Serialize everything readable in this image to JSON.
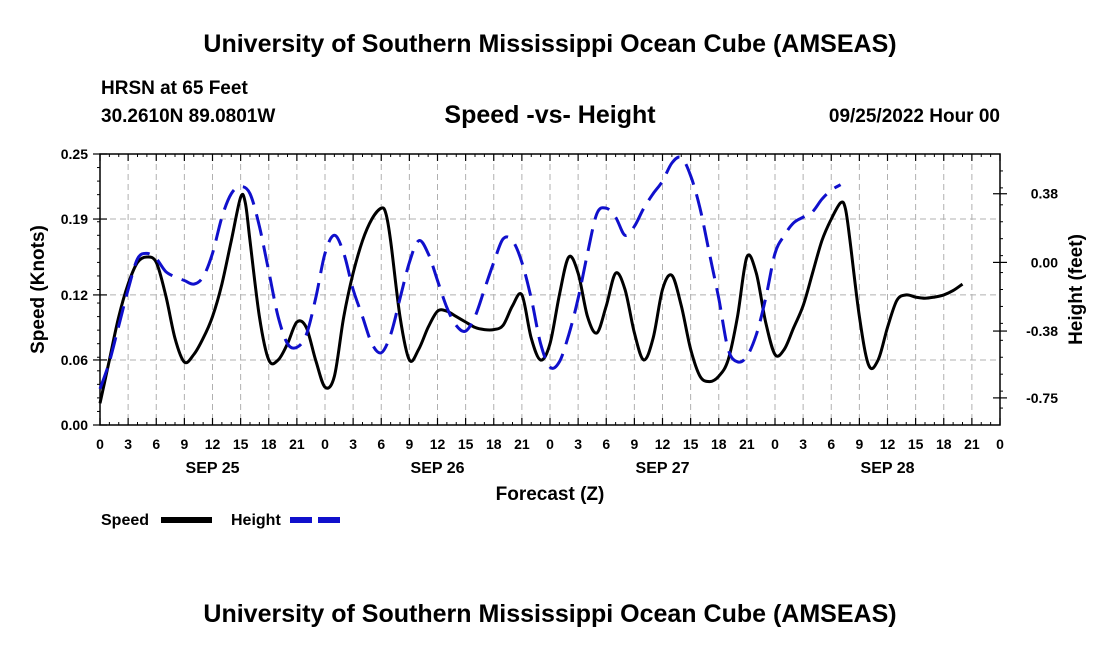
{
  "header": {
    "title": "University of Southern Mississippi Ocean Cube (AMSEAS)",
    "station": "HRSN at 65 Feet",
    "coords": "30.2610N  89.0801W",
    "subtitle": "Speed -vs- Height",
    "datetime": "09/25/2022 Hour 00"
  },
  "footer": {
    "title": "University of Southern Mississippi Ocean Cube (AMSEAS)"
  },
  "chart_data": {
    "type": "line",
    "title": "Speed -vs- Height",
    "xlabel": "Forecast (Z)",
    "ylabel": "Speed (Knots)",
    "y2label": "Height (feet)",
    "xlim": [
      0,
      96
    ],
    "ylim": [
      0,
      0.25
    ],
    "y2lim": [
      -0.9,
      0.6
    ],
    "grid": true,
    "x_ticks": [
      0,
      3,
      6,
      9,
      12,
      15,
      18,
      21,
      24,
      27,
      30,
      33,
      36,
      39,
      42,
      45,
      48,
      51,
      54,
      57,
      60,
      63,
      66,
      69,
      72,
      75,
      78,
      81,
      84,
      87,
      90,
      93,
      96
    ],
    "x_tick_labels": [
      "0",
      "3",
      "6",
      "9",
      "12",
      "15",
      "18",
      "21",
      "0",
      "3",
      "6",
      "9",
      "12",
      "15",
      "18",
      "21",
      "0",
      "3",
      "6",
      "9",
      "12",
      "15",
      "18",
      "21",
      "0",
      "3",
      "6",
      "9",
      "12",
      "15",
      "18",
      "21",
      "0"
    ],
    "date_labels": [
      {
        "x": 12,
        "label": "SEP 25"
      },
      {
        "x": 36,
        "label": "SEP 26"
      },
      {
        "x": 60,
        "label": "SEP 27"
      },
      {
        "x": 84,
        "label": "SEP 28"
      }
    ],
    "y_ticks": [
      0.0,
      0.06,
      0.12,
      0.19,
      0.25
    ],
    "y_tick_labels": [
      "0.00",
      "0.06",
      "0.12",
      "0.19",
      "0.25"
    ],
    "y2_ticks": [
      0.38,
      0.0,
      -0.38,
      -0.75
    ],
    "y2_tick_labels": [
      "0.38",
      "0.00",
      "-0.38",
      "-0.75"
    ],
    "legend": [
      {
        "label": "Speed",
        "color": "#000000",
        "style": "solid"
      },
      {
        "label": "Height",
        "color": "#1010cc",
        "style": "dashed"
      }
    ],
    "series": [
      {
        "name": "Speed",
        "axis": "left",
        "color": "#000000",
        "points": [
          [
            0,
            0.02
          ],
          [
            1,
            0.06
          ],
          [
            2,
            0.1
          ],
          [
            3,
            0.13
          ],
          [
            4,
            0.15
          ],
          [
            5,
            0.155
          ],
          [
            6,
            0.15
          ],
          [
            7,
            0.12
          ],
          [
            8,
            0.08
          ],
          [
            9,
            0.058
          ],
          [
            10,
            0.065
          ],
          [
            11,
            0.08
          ],
          [
            12,
            0.1
          ],
          [
            13,
            0.13
          ],
          [
            14,
            0.17
          ],
          [
            15,
            0.21
          ],
          [
            15.5,
            0.205
          ],
          [
            16,
            0.17
          ],
          [
            17,
            0.1
          ],
          [
            18,
            0.06
          ],
          [
            19,
            0.06
          ],
          [
            20,
            0.075
          ],
          [
            21,
            0.095
          ],
          [
            22,
            0.09
          ],
          [
            23,
            0.06
          ],
          [
            24,
            0.035
          ],
          [
            25,
            0.045
          ],
          [
            26,
            0.1
          ],
          [
            27,
            0.14
          ],
          [
            28,
            0.17
          ],
          [
            29,
            0.19
          ],
          [
            30,
            0.2
          ],
          [
            30.5,
            0.195
          ],
          [
            31,
            0.17
          ],
          [
            32,
            0.1
          ],
          [
            33,
            0.06
          ],
          [
            34,
            0.07
          ],
          [
            35,
            0.09
          ],
          [
            36,
            0.105
          ],
          [
            37,
            0.105
          ],
          [
            38,
            0.1
          ],
          [
            39,
            0.095
          ],
          [
            40,
            0.09
          ],
          [
            41,
            0.088
          ],
          [
            42,
            0.088
          ],
          [
            43,
            0.092
          ],
          [
            44,
            0.11
          ],
          [
            45,
            0.12
          ],
          [
            46,
            0.08
          ],
          [
            47,
            0.06
          ],
          [
            48,
            0.075
          ],
          [
            49,
            0.12
          ],
          [
            50,
            0.155
          ],
          [
            51,
            0.14
          ],
          [
            52,
            0.1
          ],
          [
            53,
            0.085
          ],
          [
            54,
            0.11
          ],
          [
            55,
            0.14
          ],
          [
            56,
            0.125
          ],
          [
            57,
            0.085
          ],
          [
            58,
            0.06
          ],
          [
            59,
            0.08
          ],
          [
            60,
            0.125
          ],
          [
            61,
            0.138
          ],
          [
            62,
            0.11
          ],
          [
            63,
            0.07
          ],
          [
            64,
            0.045
          ],
          [
            65,
            0.04
          ],
          [
            66,
            0.045
          ],
          [
            67,
            0.06
          ],
          [
            68,
            0.1
          ],
          [
            69,
            0.155
          ],
          [
            70,
            0.14
          ],
          [
            71,
            0.095
          ],
          [
            72,
            0.065
          ],
          [
            73,
            0.07
          ],
          [
            74,
            0.09
          ],
          [
            75,
            0.11
          ],
          [
            76,
            0.14
          ],
          [
            77,
            0.17
          ],
          [
            78,
            0.19
          ],
          [
            79,
            0.205
          ],
          [
            79.5,
            0.2
          ],
          [
            80,
            0.17
          ],
          [
            81,
            0.1
          ],
          [
            82,
            0.055
          ],
          [
            83,
            0.06
          ],
          [
            84,
            0.09
          ],
          [
            85,
            0.115
          ],
          [
            86,
            0.12
          ],
          [
            87,
            0.118
          ],
          [
            88,
            0.117
          ],
          [
            89,
            0.118
          ],
          [
            90,
            0.12
          ],
          [
            91,
            0.124
          ],
          [
            92,
            0.13
          ]
        ]
      },
      {
        "name": "Height",
        "axis": "right",
        "color": "#1010cc",
        "points": [
          [
            0,
            -0.7
          ],
          [
            1,
            -0.55
          ],
          [
            2,
            -0.35
          ],
          [
            3,
            -0.15
          ],
          [
            4,
            0.02
          ],
          [
            5,
            0.05
          ],
          [
            6,
            0.02
          ],
          [
            7,
            -0.05
          ],
          [
            8,
            -0.08
          ],
          [
            9,
            -0.1
          ],
          [
            10,
            -0.12
          ],
          [
            11,
            -0.08
          ],
          [
            12,
            0.05
          ],
          [
            13,
            0.25
          ],
          [
            14,
            0.38
          ],
          [
            15,
            0.42
          ],
          [
            16,
            0.38
          ],
          [
            17,
            0.2
          ],
          [
            18,
            -0.05
          ],
          [
            19,
            -0.3
          ],
          [
            20,
            -0.45
          ],
          [
            21,
            -0.47
          ],
          [
            22,
            -0.4
          ],
          [
            23,
            -0.2
          ],
          [
            24,
            0.05
          ],
          [
            25,
            0.15
          ],
          [
            26,
            0.05
          ],
          [
            27,
            -0.15
          ],
          [
            28,
            -0.3
          ],
          [
            29,
            -0.45
          ],
          [
            30,
            -0.5
          ],
          [
            31,
            -0.4
          ],
          [
            32,
            -0.2
          ],
          [
            33,
            0.0
          ],
          [
            34,
            0.12
          ],
          [
            35,
            0.05
          ],
          [
            36,
            -0.1
          ],
          [
            37,
            -0.25
          ],
          [
            38,
            -0.35
          ],
          [
            39,
            -0.38
          ],
          [
            40,
            -0.3
          ],
          [
            41,
            -0.15
          ],
          [
            42,
            0.0
          ],
          [
            43,
            0.13
          ],
          [
            44,
            0.12
          ],
          [
            45,
            0.0
          ],
          [
            46,
            -0.2
          ],
          [
            47,
            -0.45
          ],
          [
            48,
            -0.58
          ],
          [
            49,
            -0.55
          ],
          [
            50,
            -0.4
          ],
          [
            51,
            -0.2
          ],
          [
            52,
            0.05
          ],
          [
            53,
            0.27
          ],
          [
            54,
            0.3
          ],
          [
            55,
            0.25
          ],
          [
            56,
            0.15
          ],
          [
            57,
            0.2
          ],
          [
            58,
            0.3
          ],
          [
            59,
            0.38
          ],
          [
            60,
            0.45
          ],
          [
            61,
            0.55
          ],
          [
            62,
            0.58
          ],
          [
            63,
            0.48
          ],
          [
            64,
            0.3
          ],
          [
            65,
            0.05
          ],
          [
            66,
            -0.2
          ],
          [
            67,
            -0.48
          ],
          [
            68,
            -0.55
          ],
          [
            69,
            -0.52
          ],
          [
            70,
            -0.4
          ],
          [
            71,
            -0.2
          ],
          [
            72,
            0.05
          ],
          [
            73,
            0.15
          ],
          [
            74,
            0.22
          ],
          [
            75,
            0.25
          ],
          [
            76,
            0.28
          ],
          [
            77,
            0.35
          ],
          [
            78,
            0.4
          ],
          [
            79,
            0.43
          ]
        ]
      }
    ]
  }
}
